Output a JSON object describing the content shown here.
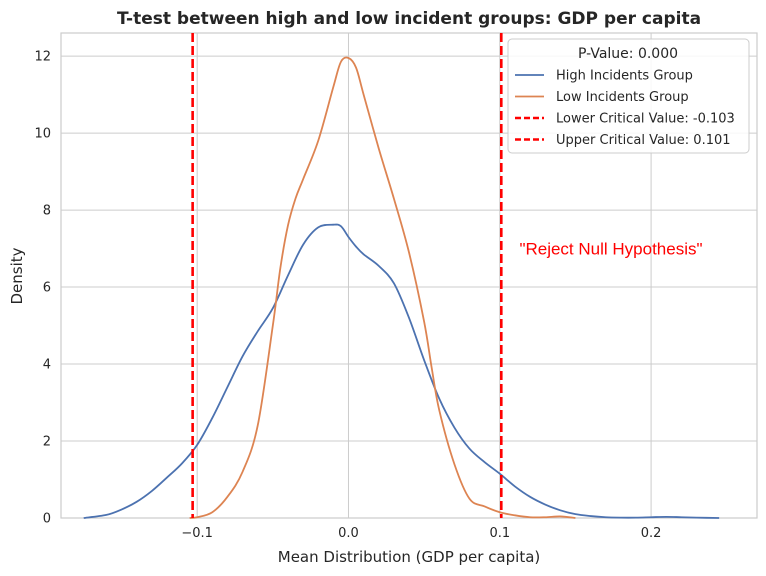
{
  "chart_data": {
    "type": "line",
    "title": "T-test between high and low incident groups: GDP per capita",
    "xlabel": "Mean Distribution (GDP per capita)",
    "ylabel": "Density",
    "xlim": [
      -0.19,
      0.27
    ],
    "ylim": [
      0,
      12.6
    ],
    "xticks": [
      -0.1,
      0.0,
      0.1,
      0.2
    ],
    "xtick_labels": [
      "−0.1",
      "0.0",
      "0.1",
      "0.2"
    ],
    "yticks": [
      0,
      2,
      4,
      6,
      8,
      10,
      12
    ],
    "ytick_labels": [
      "0",
      "2",
      "4",
      "6",
      "8",
      "10",
      "12"
    ],
    "grid": true,
    "legend_title": "P-Value: 0.000",
    "legend_position": "top-right",
    "series": [
      {
        "name": "High Incidents Group",
        "color": "#4c72b0",
        "x": [
          -0.175,
          -0.16,
          -0.15,
          -0.14,
          -0.13,
          -0.12,
          -0.11,
          -0.1,
          -0.09,
          -0.08,
          -0.07,
          -0.06,
          -0.05,
          -0.04,
          -0.03,
          -0.02,
          -0.01,
          -0.005,
          0.0,
          0.005,
          0.01,
          0.02,
          0.03,
          0.04,
          0.05,
          0.06,
          0.07,
          0.08,
          0.09,
          0.1,
          0.11,
          0.12,
          0.13,
          0.14,
          0.15,
          0.16,
          0.17,
          0.18,
          0.19,
          0.2,
          0.21,
          0.22,
          0.23,
          0.245
        ],
        "y": [
          0.0,
          0.08,
          0.22,
          0.42,
          0.7,
          1.05,
          1.42,
          1.9,
          2.6,
          3.4,
          4.2,
          4.85,
          5.45,
          6.3,
          7.1,
          7.55,
          7.62,
          7.58,
          7.3,
          7.05,
          6.85,
          6.55,
          6.1,
          5.2,
          4.1,
          3.1,
          2.35,
          1.8,
          1.45,
          1.15,
          0.82,
          0.55,
          0.35,
          0.2,
          0.1,
          0.05,
          0.02,
          0.01,
          0.01,
          0.02,
          0.03,
          0.02,
          0.01,
          0.0
        ]
      },
      {
        "name": "Low Incidents Group",
        "color": "#dd8452",
        "x": [
          -0.105,
          -0.1,
          -0.09,
          -0.08,
          -0.07,
          -0.06,
          -0.05,
          -0.045,
          -0.04,
          -0.035,
          -0.03,
          -0.02,
          -0.01,
          -0.005,
          0.0,
          0.005,
          0.01,
          0.02,
          0.03,
          0.04,
          0.05,
          0.055,
          0.06,
          0.07,
          0.08,
          0.09,
          0.1,
          0.11,
          0.12,
          0.13,
          0.14,
          0.15
        ],
        "y": [
          0.0,
          0.02,
          0.15,
          0.55,
          1.2,
          2.4,
          5.0,
          6.5,
          7.6,
          8.3,
          8.8,
          9.8,
          11.2,
          11.85,
          11.95,
          11.7,
          11.0,
          9.6,
          8.3,
          6.9,
          5.1,
          3.9,
          2.8,
          1.4,
          0.5,
          0.3,
          0.15,
          0.07,
          0.02,
          0.02,
          0.04,
          0.0
        ]
      }
    ],
    "critical_lines": [
      {
        "name": "Lower Critical Value: -0.103",
        "x": -0.103,
        "color": "#ff0000"
      },
      {
        "name": "Upper Critical Value: 0.101",
        "x": 0.101,
        "color": "#ff0000"
      }
    ],
    "annotation": {
      "text": "\"Reject Null Hypothesis\"",
      "x": 0.113,
      "y": 7.0,
      "color": "#ff0000"
    }
  }
}
